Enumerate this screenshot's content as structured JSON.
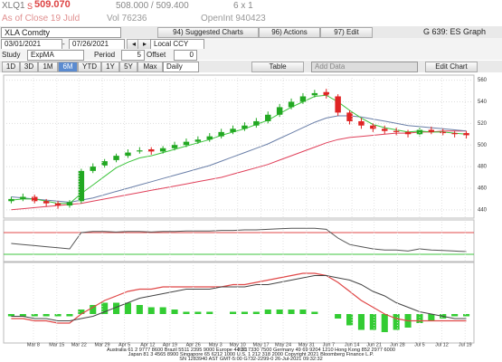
{
  "header": {
    "ticker": "XLQ1",
    "price_prefix": "S",
    "price": "509.070",
    "bid_ask": "508.000 / 509.400",
    "size": "6 x 1",
    "as_of": "As of Close 19 Juld",
    "volume": "Vol 76236",
    "open_interest": "OpenInt 940423"
  },
  "toolbar": {
    "security": "XLA Comdty",
    "menu": [
      "94) Suggested Charts",
      "96) Actions",
      "97) Edit"
    ],
    "screen": "G 639: ES Graph",
    "start_date": "03/01/2021",
    "end_date": "07/26/2021",
    "currency": "Local CCY",
    "study_label": "Study",
    "study": "ExpMA",
    "period_label": "Period",
    "period": "5",
    "offset_label": "Offset",
    "offset": "0",
    "ranges": [
      "1D",
      "3D",
      "1M",
      "6M",
      "YTD",
      "1Y",
      "5Y",
      "Max"
    ],
    "frequency": "Daily",
    "table": "Table",
    "add_data": "Add Data",
    "edit_chart": "Edit Chart"
  },
  "chart_data": [
    {
      "type": "candlestick",
      "up_color": "#22a822",
      "down_color": "#e02424",
      "open": [
        448,
        450,
        452,
        448,
        446,
        444,
        448,
        476,
        481,
        486,
        490,
        494,
        496,
        494,
        497,
        500,
        503,
        505,
        508,
        512,
        515,
        518,
        522,
        528,
        535,
        540,
        546,
        549,
        545,
        530,
        522,
        518,
        515,
        513,
        512,
        510,
        514,
        512,
        511,
        511
      ],
      "high": [
        452,
        455,
        454,
        450,
        448,
        449,
        478,
        483,
        487,
        492,
        496,
        498,
        498,
        499,
        503,
        506,
        508,
        511,
        515,
        518,
        521,
        525,
        531,
        538,
        543,
        548,
        551,
        552,
        547,
        532,
        525,
        520,
        518,
        516,
        514,
        516,
        517,
        515,
        513,
        513
      ],
      "low": [
        446,
        448,
        446,
        443,
        441,
        442,
        446,
        474,
        479,
        484,
        488,
        492,
        491,
        492,
        495,
        498,
        501,
        503,
        506,
        510,
        513,
        516,
        520,
        526,
        533,
        538,
        544,
        543,
        527,
        519,
        515,
        512,
        510,
        509,
        507,
        508,
        510,
        509,
        507,
        506
      ],
      "close": [
        450,
        452,
        448,
        446,
        444,
        447,
        476,
        480,
        485,
        490,
        493,
        495,
        494,
        497,
        500,
        503,
        505,
        508,
        512,
        515,
        518,
        522,
        528,
        535,
        540,
        545,
        548,
        546,
        530,
        522,
        518,
        515,
        513,
        512,
        510,
        514,
        512,
        511,
        510,
        509
      ],
      "series": [
        {
          "color": "#e0405a",
          "values": [
            440,
            441,
            442,
            443,
            444,
            445,
            446,
            448,
            450,
            452,
            454,
            456,
            458,
            460,
            462,
            464,
            466,
            468,
            470,
            473,
            476,
            479,
            482,
            486,
            490,
            494,
            498,
            502,
            505,
            507,
            508,
            509,
            510,
            511,
            511,
            512,
            512,
            513,
            513,
            513
          ]
        },
        {
          "color": "#6a7fa8",
          "values": [
            452,
            451,
            450,
            449,
            448,
            447,
            449,
            451,
            454,
            457,
            460,
            463,
            466,
            469,
            472,
            475,
            478,
            481,
            485,
            489,
            493,
            497,
            501,
            506,
            511,
            516,
            521,
            525,
            527,
            527,
            526,
            524,
            522,
            520,
            518,
            517,
            516,
            515,
            514,
            513
          ]
        },
        {
          "color": "#3cc43c",
          "values": [
            449,
            450,
            450,
            448,
            446,
            446,
            455,
            463,
            471,
            479,
            484,
            488,
            490,
            493,
            496,
            499,
            502,
            505,
            509,
            512,
            515,
            519,
            523,
            529,
            535,
            540,
            545,
            546,
            540,
            532,
            525,
            519,
            516,
            514,
            512,
            513,
            512,
            512,
            511,
            510
          ]
        }
      ],
      "ylim": [
        434,
        563
      ],
      "yticks": [
        440,
        460,
        480,
        500,
        520,
        540,
        560
      ],
      "grid": true
    },
    {
      "type": "line",
      "color": "#555555",
      "values": [
        50,
        48,
        46,
        44,
        42,
        40,
        70,
        72,
        72,
        71,
        72,
        72,
        71,
        72,
        72,
        73,
        73,
        73,
        74,
        74,
        75,
        75,
        76,
        77,
        78,
        78,
        78,
        76,
        60,
        48,
        44,
        40,
        38,
        38,
        36,
        40,
        38,
        37,
        36,
        35
      ],
      "levels": [
        70,
        30
      ],
      "level_colors": [
        "#e04848",
        "#3cc43c"
      ],
      "ylim": [
        20,
        90
      ]
    },
    {
      "type": "macd",
      "macd_color": "#e04848",
      "signal_color": "#444444",
      "histogram_color": "#33cc33",
      "macd": [
        -2,
        -2,
        -3,
        -3,
        -4,
        -4,
        0,
        3,
        6,
        8,
        10,
        11,
        11,
        12,
        12,
        12,
        12,
        12,
        12,
        13,
        13,
        14,
        15,
        16,
        17,
        18,
        18,
        17,
        14,
        10,
        6,
        3,
        0,
        -2,
        -3,
        -3,
        -3,
        -3,
        -3,
        -3
      ],
      "signal": [
        -1,
        -1,
        -2,
        -2,
        -3,
        -3,
        -2,
        -1,
        1,
        3,
        5,
        7,
        8,
        9,
        10,
        11,
        11,
        11,
        12,
        12,
        12,
        13,
        13,
        14,
        15,
        16,
        17,
        17,
        16,
        15,
        13,
        10,
        8,
        5,
        3,
        1,
        0,
        -1,
        -2,
        -2
      ],
      "histogram": [
        -1,
        -1,
        -1,
        -1,
        -1,
        -1,
        2,
        4,
        5,
        5,
        5,
        4,
        3,
        3,
        2,
        1,
        1,
        1,
        0,
        1,
        1,
        1,
        2,
        2,
        2,
        2,
        1,
        0,
        -2,
        -5,
        -7,
        -7,
        -8,
        -7,
        -6,
        -4,
        -3,
        -2,
        -1,
        -1
      ],
      "ylim": [
        -12,
        22
      ],
      "xticks": [
        {
          "value": 1.9,
          "label": "Mar 8"
        },
        {
          "value": 3.9,
          "label": "Mar 15"
        },
        {
          "value": 5.8,
          "label": "Mar 22"
        },
        {
          "value": 7.8,
          "label": "Mar 29"
        },
        {
          "value": 9.7,
          "label": "Apr 5"
        },
        {
          "value": 11.7,
          "label": "Apr 12"
        },
        {
          "value": 13.6,
          "label": "Apr 19"
        },
        {
          "value": 15.6,
          "label": "Apr 26"
        },
        {
          "value": 17.5,
          "label": "May 3"
        },
        {
          "value": 19.4,
          "label": "May 10"
        },
        {
          "value": 21.4,
          "label": "May 17"
        },
        {
          "value": 23.3,
          "label": "May 24"
        },
        {
          "value": 25.3,
          "label": "May 31"
        },
        {
          "value": 27.2,
          "label": "Jun 7"
        },
        {
          "value": 29.2,
          "label": "Jun 14"
        },
        {
          "value": 31.1,
          "label": "Jun 21"
        },
        {
          "value": 33.1,
          "label": "Jun 28"
        },
        {
          "value": 35.0,
          "label": "Jul 5"
        },
        {
          "value": 36.9,
          "label": "Jul 12"
        },
        {
          "value": 38.9,
          "label": "Jul 19"
        }
      ],
      "x_year": "2021"
    }
  ],
  "footer": {
    "lines": [
      "Australia 61 2 9777 8600 Brazil 5511 2395 9000 Europe 44 20 7330 7500 Germany 49 69 9204 1210 Hong Kong 852 2977 6000",
      "Japan 81 3 4565 8900 Singapore 65 6212 1000 U.S. 1 212 318 2000 Copyright 2021 Bloomberg Finance L.P.",
      "SN 1283940 AST GMT-5:00 G732-2299-0 26-Jul-2021 09:32:32"
    ]
  }
}
